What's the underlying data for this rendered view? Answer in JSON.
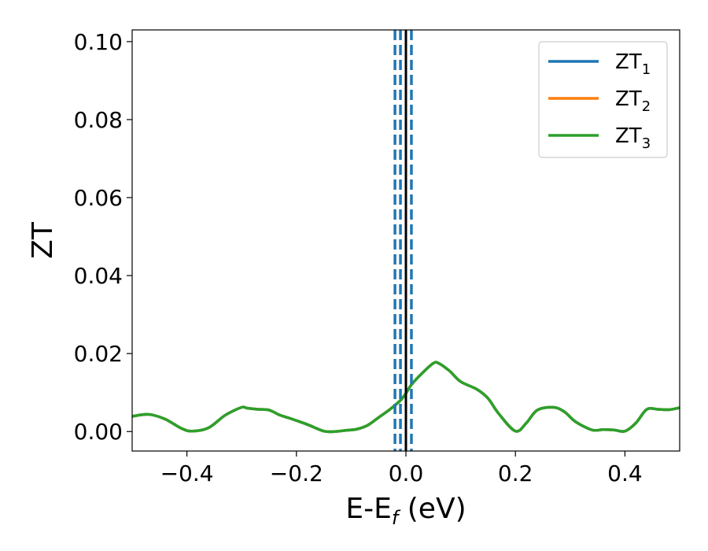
{
  "chart_data": {
    "type": "line",
    "xlabel": {
      "main": "E-E",
      "sub": "f",
      "suffix": " (eV)"
    },
    "ylabel": "ZT",
    "xlim": [
      -0.5,
      0.5
    ],
    "ylim": [
      -0.005,
      0.103
    ],
    "x_ticks": [
      -0.4,
      -0.2,
      0.0,
      0.2,
      0.4
    ],
    "x_tick_labels": [
      "−0.4",
      "−0.2",
      "0.0",
      "0.2",
      "0.4"
    ],
    "y_ticks": [
      0.0,
      0.02,
      0.04,
      0.06,
      0.08,
      0.1
    ],
    "y_tick_labels": [
      "0.00",
      "0.02",
      "0.04",
      "0.06",
      "0.08",
      "0.10"
    ],
    "grid": false,
    "legend_position": "top-right",
    "series": [
      {
        "name": "ZT1",
        "legend_main": "ZT",
        "legend_sub": "1",
        "color": "#1f77b4",
        "x": [
          -0.5,
          -0.47,
          -0.44,
          -0.41,
          -0.39,
          -0.36,
          -0.33,
          -0.3,
          -0.29,
          -0.27,
          -0.25,
          -0.23,
          -0.21,
          -0.18,
          -0.15,
          -0.13,
          -0.11,
          -0.09,
          -0.07,
          -0.05,
          -0.03,
          -0.01,
          0.0,
          0.01,
          0.03,
          0.05,
          0.06,
          0.08,
          0.1,
          0.13,
          0.15,
          0.17,
          0.2,
          0.22,
          0.24,
          0.27,
          0.29,
          0.31,
          0.34,
          0.36,
          0.38,
          0.4,
          0.42,
          0.44,
          0.46,
          0.48,
          0.5
        ],
        "y": [
          0.0039,
          0.0044,
          0.0032,
          0.0008,
          0.0001,
          0.001,
          0.0042,
          0.0062,
          0.006,
          0.0057,
          0.0055,
          0.0042,
          0.0033,
          0.0018,
          0.0001,
          0.0,
          0.0003,
          0.0006,
          0.0016,
          0.0036,
          0.0056,
          0.008,
          0.0098,
          0.012,
          0.015,
          0.0175,
          0.0175,
          0.0155,
          0.0128,
          0.0108,
          0.0085,
          0.0045,
          0.0001,
          0.0022,
          0.0055,
          0.0062,
          0.005,
          0.0025,
          0.0004,
          0.0005,
          0.0004,
          0.0001,
          0.0022,
          0.0057,
          0.0057,
          0.0056,
          0.0061
        ]
      },
      {
        "name": "ZT2",
        "legend_main": "ZT",
        "legend_sub": "2",
        "color": "#ff7f0e",
        "x": [
          -0.5,
          -0.47,
          -0.44,
          -0.41,
          -0.39,
          -0.36,
          -0.33,
          -0.3,
          -0.29,
          -0.27,
          -0.25,
          -0.23,
          -0.21,
          -0.18,
          -0.15,
          -0.13,
          -0.11,
          -0.09,
          -0.07,
          -0.05,
          -0.03,
          -0.01,
          0.0,
          0.01,
          0.03,
          0.05,
          0.06,
          0.08,
          0.1,
          0.13,
          0.15,
          0.17,
          0.2,
          0.22,
          0.24,
          0.27,
          0.29,
          0.31,
          0.34,
          0.36,
          0.38,
          0.4,
          0.42,
          0.44,
          0.46,
          0.48,
          0.5
        ],
        "y": [
          0.0039,
          0.0044,
          0.0032,
          0.0008,
          0.0001,
          0.001,
          0.0042,
          0.0062,
          0.006,
          0.0057,
          0.0055,
          0.0042,
          0.0033,
          0.0018,
          0.0001,
          0.0,
          0.0003,
          0.0006,
          0.0016,
          0.0036,
          0.0056,
          0.008,
          0.0098,
          0.012,
          0.015,
          0.0175,
          0.0175,
          0.0155,
          0.0128,
          0.0108,
          0.0085,
          0.0045,
          0.0001,
          0.0022,
          0.0055,
          0.0062,
          0.005,
          0.0025,
          0.0004,
          0.0005,
          0.0004,
          0.0001,
          0.0022,
          0.0057,
          0.0057,
          0.0056,
          0.0061
        ]
      },
      {
        "name": "ZT3",
        "legend_main": "ZT",
        "legend_sub": "3",
        "color": "#2ca02c",
        "x": [
          -0.5,
          -0.47,
          -0.44,
          -0.41,
          -0.39,
          -0.36,
          -0.33,
          -0.3,
          -0.29,
          -0.27,
          -0.25,
          -0.23,
          -0.21,
          -0.18,
          -0.15,
          -0.13,
          -0.11,
          -0.09,
          -0.07,
          -0.05,
          -0.03,
          -0.01,
          0.0,
          0.01,
          0.03,
          0.05,
          0.06,
          0.08,
          0.1,
          0.13,
          0.15,
          0.17,
          0.2,
          0.22,
          0.24,
          0.27,
          0.29,
          0.31,
          0.34,
          0.36,
          0.38,
          0.4,
          0.42,
          0.44,
          0.46,
          0.48,
          0.5
        ],
        "y": [
          0.0039,
          0.0044,
          0.0032,
          0.0008,
          0.0001,
          0.001,
          0.0042,
          0.0062,
          0.006,
          0.0057,
          0.0055,
          0.0042,
          0.0033,
          0.0018,
          0.0001,
          0.0,
          0.0003,
          0.0006,
          0.0016,
          0.0036,
          0.0056,
          0.008,
          0.0098,
          0.012,
          0.015,
          0.0175,
          0.0175,
          0.0155,
          0.0128,
          0.0108,
          0.0085,
          0.0045,
          0.0001,
          0.0022,
          0.0055,
          0.0062,
          0.005,
          0.0025,
          0.0004,
          0.0005,
          0.0004,
          0.0001,
          0.0022,
          0.0057,
          0.0057,
          0.0056,
          0.0061
        ]
      }
    ],
    "vertical_lines": [
      {
        "x": -0.02,
        "style": "dashed",
        "color": "#1f77b4"
      },
      {
        "x": -0.01,
        "style": "dashed",
        "color": "#1f77b4"
      },
      {
        "x": 0.0,
        "style": "solid",
        "color": "#000000"
      },
      {
        "x": 0.01,
        "style": "dashed",
        "color": "#1f77b4"
      }
    ]
  }
}
